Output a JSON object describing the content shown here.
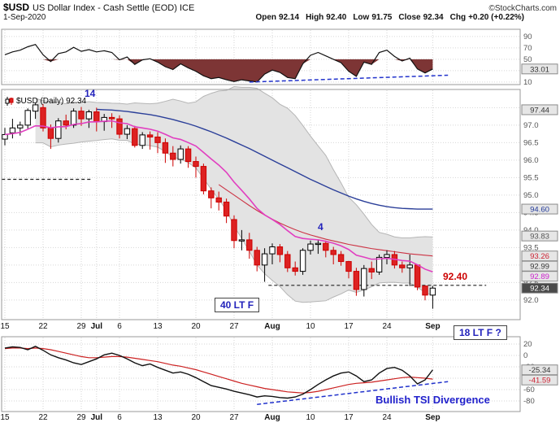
{
  "header": {
    "symbol": "$USD",
    "title": "US Dollar Index - Cash Settle (EOD) ICE",
    "credit": "©StockCharts.com",
    "date": "1-Sep-2020",
    "quote": {
      "open_label": "Open",
      "open_value": "92.14",
      "high_label": "High",
      "high_value": "92.40",
      "low_label": "Low",
      "low_value": "91.75",
      "close_label": "Close",
      "close_value": "92.34",
      "chg_label": "Chg",
      "chg_value": "+0.20 (+0.22%)"
    }
  },
  "legend": {
    "label": "$USD (Daily) 92.34"
  },
  "annotations": {
    "cycle_high_label": "14",
    "cycle_mid_label": "4",
    "lt40_label": "40 LT F",
    "lt18_label": "18 LT F ?",
    "price_flag": "92.40",
    "divergence_label": "Bullish TSI Divergence"
  },
  "colors": {
    "bear_red": "#cc0000",
    "bear_fill": "#dd2222",
    "bull_black": "#000000",
    "bull_fill": "#ffffff",
    "ema_magenta": "#e13fc0",
    "ma_blue": "#2b3f99",
    "ma_red": "#cc3344",
    "band_gray": "#e3e3e3",
    "band_edge": "#b5b5b5",
    "osc_fill": "#7d3535",
    "trend_blue": "#2233cc",
    "grid_gray": "#d6d6d6",
    "flag_bg": "#e6e6e6"
  },
  "chart_data": {
    "type": "candlestick",
    "title": "$USD US Dollar Index - Cash Settle (EOD) ICE",
    "x_ticks": [
      {
        "i": 0,
        "l": "15"
      },
      {
        "i": 5,
        "l": "22"
      },
      {
        "i": 10,
        "l": "29"
      },
      {
        "i": 12,
        "l": "Jul",
        "m": true
      },
      {
        "i": 15,
        "l": "6"
      },
      {
        "i": 20,
        "l": "13"
      },
      {
        "i": 25,
        "l": "20"
      },
      {
        "i": 30,
        "l": "27"
      },
      {
        "i": 35,
        "l": "Aug",
        "m": true
      },
      {
        "i": 40,
        "l": "10"
      },
      {
        "i": 45,
        "l": "17"
      },
      {
        "i": 50,
        "l": "24"
      },
      {
        "i": 56,
        "l": "Sep",
        "m": true
      }
    ],
    "candles": [
      [
        96.6,
        96.92,
        96.42,
        96.73
      ],
      [
        96.78,
        97.18,
        96.62,
        96.92
      ],
      [
        96.92,
        97.1,
        96.7,
        97.0
      ],
      [
        97.0,
        97.48,
        96.9,
        97.42
      ],
      [
        97.4,
        97.62,
        97.18,
        97.58
      ],
      [
        97.5,
        97.6,
        96.82,
        96.92
      ],
      [
        96.92,
        97.02,
        96.32,
        96.62
      ],
      [
        96.62,
        97.2,
        96.5,
        97.12
      ],
      [
        97.12,
        97.3,
        96.88,
        97.0
      ],
      [
        97.0,
        97.48,
        96.92,
        97.4
      ],
      [
        97.4,
        97.52,
        96.98,
        97.18
      ],
      [
        97.18,
        97.44,
        96.92,
        97.38
      ],
      [
        97.38,
        97.5,
        96.82,
        97.1
      ],
      [
        97.1,
        97.32,
        96.84,
        97.22
      ],
      [
        97.22,
        97.34,
        96.92,
        97.18
      ],
      [
        97.18,
        97.28,
        96.62,
        96.74
      ],
      [
        96.74,
        97.0,
        96.6,
        96.9
      ],
      [
        96.9,
        96.98,
        96.36,
        96.42
      ],
      [
        96.42,
        96.8,
        96.32,
        96.72
      ],
      [
        96.72,
        96.82,
        96.3,
        96.66
      ],
      [
        96.66,
        96.8,
        96.2,
        96.5
      ],
      [
        96.5,
        96.62,
        95.92,
        96.2
      ],
      [
        96.2,
        96.4,
        95.82,
        96.02
      ],
      [
        96.02,
        96.42,
        95.9,
        96.32
      ],
      [
        96.32,
        96.4,
        95.78,
        95.96
      ],
      [
        95.96,
        96.1,
        95.5,
        95.82
      ],
      [
        95.82,
        95.9,
        95.02,
        95.12
      ],
      [
        95.12,
        95.22,
        94.62,
        94.92
      ],
      [
        94.92,
        95.1,
        94.56,
        94.8
      ],
      [
        94.8,
        94.9,
        94.2,
        94.4
      ],
      [
        94.3,
        94.42,
        93.48,
        93.7
      ],
      [
        93.7,
        94.0,
        93.42,
        93.72
      ],
      [
        93.72,
        93.92,
        93.18,
        93.42
      ],
      [
        93.42,
        93.52,
        92.82,
        93.0
      ],
      [
        93.0,
        93.48,
        92.52,
        93.32
      ],
      [
        93.32,
        93.62,
        93.02,
        93.52
      ],
      [
        93.52,
        93.6,
        93.08,
        93.3
      ],
      [
        93.3,
        93.4,
        92.8,
        92.92
      ],
      [
        92.92,
        93.1,
        92.7,
        92.82
      ],
      [
        92.82,
        93.48,
        92.72,
        93.42
      ],
      [
        93.42,
        93.7,
        93.3,
        93.6
      ],
      [
        93.6,
        93.72,
        93.32,
        93.62
      ],
      [
        93.62,
        93.7,
        93.22,
        93.42
      ],
      [
        93.42,
        93.52,
        93.02,
        93.3
      ],
      [
        93.3,
        93.4,
        92.98,
        93.1
      ],
      [
        93.1,
        93.12,
        92.62,
        92.82
      ],
      [
        92.82,
        92.92,
        92.12,
        92.3
      ],
      [
        92.3,
        93.0,
        92.1,
        92.9
      ],
      [
        92.9,
        93.1,
        92.6,
        92.8
      ],
      [
        92.8,
        93.3,
        92.72,
        93.22
      ],
      [
        93.22,
        93.42,
        93.02,
        93.3
      ],
      [
        93.3,
        93.4,
        92.9,
        93.0
      ],
      [
        93.0,
        93.1,
        92.78,
        92.92
      ],
      [
        92.92,
        93.3,
        92.4,
        93.0
      ],
      [
        93.0,
        93.02,
        92.28,
        92.37
      ],
      [
        92.4,
        92.42,
        91.99,
        92.14
      ],
      [
        92.14,
        92.4,
        91.75,
        92.34
      ]
    ],
    "main": {
      "grid": [
        97.5,
        97.0,
        96.5,
        96.0,
        95.5,
        95.0,
        94.5,
        94.0,
        93.5,
        93.0,
        92.5,
        92.0
      ],
      "y_ticks": [
        {
          "v": 97.0,
          "l": "97.0"
        },
        {
          "v": 96.5,
          "l": "96.5"
        },
        {
          "v": 96.0,
          "l": "96.0"
        },
        {
          "v": 95.5,
          "l": "95.5"
        },
        {
          "v": 95.0,
          "l": "95.0"
        },
        {
          "v": 94.5,
          "l": "94.5"
        },
        {
          "v": 94.0,
          "l": "94.0"
        },
        {
          "v": 93.5,
          "l": "93.5"
        },
        {
          "v": 93.0,
          "l": "93.0"
        },
        {
          "v": 92.5,
          "l": "92.5"
        },
        {
          "v": 92.0,
          "l": "92.0"
        }
      ],
      "flags": [
        {
          "v": 97.44,
          "l": "97.44",
          "fg": "#333333"
        },
        {
          "v": 94.6,
          "l": "94.60",
          "fg": "#223a99"
        },
        {
          "v": 93.83,
          "l": "93.83",
          "fg": "#555555"
        },
        {
          "v": 93.26,
          "l": "93.26",
          "fg": "#cc2233"
        },
        {
          "v": 92.99,
          "l": "92.99",
          "fg": "#333333"
        },
        {
          "v": 92.89,
          "l": "92.89",
          "fg": "#cc22cc"
        },
        {
          "v": 92.34,
          "l": "92.34",
          "fg": "#ffffff",
          "bg": "#4a4a4a"
        }
      ],
      "levels": [
        {
          "v": 95.45,
          "i1": -0.4,
          "i2": 11.5
        },
        {
          "v": 92.42,
          "i1": 34.5,
          "i2": 63.0
        }
      ],
      "ma_blue": {
        "start": 12,
        "values": [
          97.45,
          97.44,
          97.43,
          97.41,
          97.39,
          97.36,
          97.33,
          97.3,
          97.26,
          97.21,
          97.16,
          97.1,
          97.04,
          96.97,
          96.89,
          96.81,
          96.72,
          96.63,
          96.53,
          96.43,
          96.33,
          96.22,
          96.11,
          96.0,
          95.89,
          95.78,
          95.67,
          95.56,
          95.45,
          95.35,
          95.25,
          95.15,
          95.06,
          94.97,
          94.89,
          94.82,
          94.76,
          94.71,
          94.67,
          94.64,
          94.62,
          94.61,
          94.6,
          94.6,
          94.6
        ]
      },
      "ma_red": {
        "start": 28,
        "values": [
          95.3,
          95.15,
          95.0,
          94.85,
          94.7,
          94.56,
          94.43,
          94.31,
          94.2,
          94.1,
          94.01,
          93.93,
          93.86,
          93.8,
          93.74,
          93.69,
          93.64,
          93.59,
          93.55,
          93.51,
          93.47,
          93.44,
          93.41,
          93.38,
          93.35,
          93.32,
          93.3,
          93.28,
          93.26
        ]
      }
    },
    "top": {
      "name": "momentum-oscillator",
      "values": [
        58,
        63,
        66,
        72,
        76,
        58,
        46,
        60,
        63,
        71,
        64,
        67,
        63,
        65,
        62,
        49,
        54,
        41,
        49,
        51,
        45,
        37,
        32,
        42,
        35,
        29,
        21,
        16,
        18,
        14,
        11,
        14,
        12,
        10,
        24,
        31,
        27,
        18,
        16,
        42,
        57,
        62,
        56,
        50,
        44,
        29,
        20,
        45,
        41,
        62,
        66,
        55,
        47,
        52,
        33,
        26,
        33.01
      ],
      "y_ticks": [
        {
          "v": 90,
          "l": "90"
        },
        {
          "v": 70,
          "l": "70"
        },
        {
          "v": 50,
          "l": "50"
        },
        {
          "v": 30,
          "l": "30"
        },
        {
          "v": 10,
          "l": "10"
        }
      ],
      "flag": {
        "v": 33.01,
        "l": "33.01",
        "fg": "#333333"
      },
      "trend": {
        "i1": 32,
        "v1": 10,
        "i2": 58,
        "v2": 22
      }
    },
    "tsi": {
      "line": [
        13,
        15,
        14,
        10,
        16,
        9,
        1,
        -4,
        -8,
        -13,
        -16,
        -11,
        -6,
        1,
        4,
        0,
        -6,
        -13,
        -18,
        -15,
        -21,
        -26,
        -31,
        -29,
        -33,
        -39,
        -46,
        -53,
        -56,
        -59,
        -63,
        -66,
        -69,
        -73,
        -71,
        -72,
        -74,
        -75,
        -73,
        -68,
        -60,
        -51,
        -43,
        -36,
        -31,
        -29,
        -36,
        -46,
        -43,
        -31,
        -23,
        -21,
        -26,
        -36,
        -50,
        -43,
        -25.34
      ],
      "signal": [
        12,
        13,
        13,
        12,
        13,
        12,
        10,
        7,
        4,
        1,
        -2,
        -4,
        -4,
        -3,
        -2,
        -2,
        -3,
        -5,
        -7,
        -9,
        -11,
        -14,
        -17,
        -19,
        -22,
        -25,
        -29,
        -33,
        -37,
        -41,
        -45,
        -49,
        -52,
        -55,
        -58,
        -60,
        -62,
        -64,
        -65,
        -66,
        -65,
        -63,
        -60,
        -57,
        -54,
        -51,
        -49,
        -48,
        -47,
        -45,
        -43,
        -41,
        -39,
        -38,
        -39,
        -40,
        -41.59
      ],
      "y_ticks": [
        {
          "v": 20,
          "l": "20"
        },
        {
          "v": 0,
          "l": "0"
        },
        {
          "v": -20,
          "l": "-20"
        },
        {
          "v": -40,
          "l": "-40"
        },
        {
          "v": -60,
          "l": "-60"
        },
        {
          "v": -80,
          "l": "-80"
        }
      ],
      "flags": [
        {
          "v": -25.34,
          "l": "-25.34",
          "fg": "#333333"
        },
        {
          "v": -41.59,
          "l": "-41.59",
          "fg": "#cc2233"
        }
      ],
      "trend": {
        "i1": 33,
        "v1": -86,
        "i2": 58,
        "v2": -46
      }
    }
  }
}
